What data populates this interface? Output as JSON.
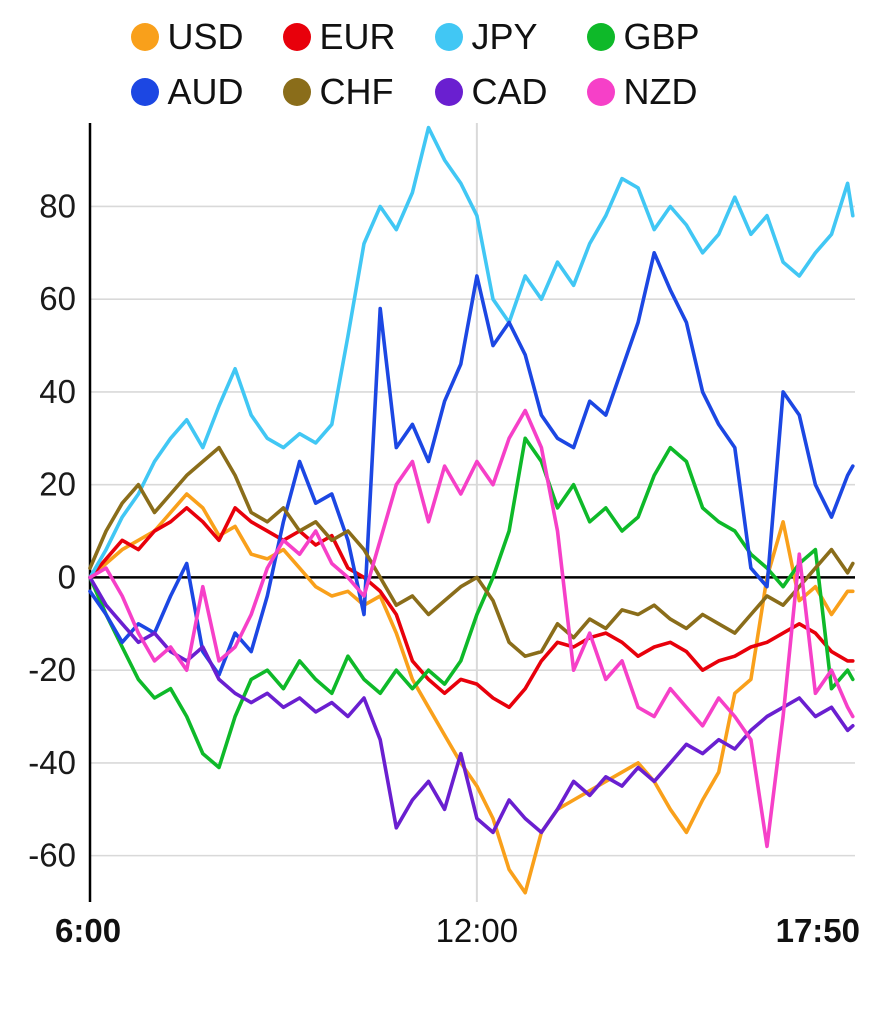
{
  "page": {
    "background": "#ffffff"
  },
  "chart_data": {
    "type": "line",
    "title": "",
    "xlabel": "",
    "ylabel": "",
    "legend_position": "top",
    "grid": {
      "horizontal": true,
      "vertical_at": [
        12
      ],
      "color": "#d9d9d9"
    },
    "axis_color": "#000000",
    "zero_line_color": "#000000",
    "tick_label_color": "#1a1a1a",
    "xlim": [
      6,
      17.8333
    ],
    "ylim": [
      -70,
      98
    ],
    "yticks": [
      80,
      60,
      40,
      20,
      0,
      -20,
      -40,
      -60
    ],
    "xticks": [
      {
        "t": 6,
        "label": "6:00",
        "bold": true
      },
      {
        "t": 12,
        "label": "12:00",
        "bold": false
      },
      {
        "t": 17.8333,
        "label": "17:50",
        "bold": true
      }
    ],
    "x": [
      6,
      6.25,
      6.5,
      6.75,
      7,
      7.25,
      7.5,
      7.75,
      8,
      8.25,
      8.5,
      8.75,
      9,
      9.25,
      9.5,
      9.75,
      10,
      10.25,
      10.5,
      10.75,
      11,
      11.25,
      11.5,
      11.75,
      12,
      12.25,
      12.5,
      12.75,
      13,
      13.25,
      13.5,
      13.75,
      14,
      14.25,
      14.5,
      14.75,
      15,
      15.25,
      15.5,
      15.75,
      16,
      16.25,
      16.5,
      16.75,
      17,
      17.25,
      17.5,
      17.75,
      17.83
    ],
    "series": [
      {
        "name": "USD",
        "color": "#F9A01B",
        "values": [
          0,
          3,
          6,
          8,
          10,
          14,
          18,
          15,
          9,
          11,
          5,
          4,
          6,
          2,
          -2,
          -4,
          -3,
          -6,
          -4,
          -12,
          -22,
          -28,
          -34,
          -40,
          -45,
          -52,
          -63,
          -68,
          -55,
          -50,
          -48,
          -46,
          -44,
          -42,
          -40,
          -44,
          -50,
          -55,
          -48,
          -42,
          -25,
          -22,
          0,
          12,
          -5,
          -2,
          -8,
          -3,
          -3
        ]
      },
      {
        "name": "EUR",
        "color": "#E8000B",
        "values": [
          0,
          4,
          8,
          6,
          10,
          12,
          15,
          12,
          8,
          15,
          12,
          10,
          8,
          10,
          7,
          9,
          2,
          0,
          -3,
          -8,
          -18,
          -22,
          -25,
          -22,
          -23,
          -26,
          -28,
          -24,
          -18,
          -14,
          -15,
          -13,
          -12,
          -14,
          -17,
          -15,
          -14,
          -16,
          -20,
          -18,
          -17,
          -15,
          -14,
          -12,
          -10,
          -12,
          -16,
          -18,
          -18
        ]
      },
      {
        "name": "JPY",
        "color": "#41C7F4",
        "values": [
          0,
          6,
          13,
          18,
          25,
          30,
          34,
          28,
          37,
          45,
          35,
          30,
          28,
          31,
          29,
          33,
          52,
          72,
          80,
          75,
          83,
          97,
          90,
          85,
          78,
          60,
          55,
          65,
          60,
          68,
          63,
          72,
          78,
          86,
          84,
          75,
          80,
          76,
          70,
          74,
          82,
          74,
          78,
          68,
          65,
          70,
          74,
          85,
          78
        ]
      },
      {
        "name": "GBP",
        "color": "#0EB929",
        "values": [
          0,
          -8,
          -15,
          -22,
          -26,
          -24,
          -30,
          -38,
          -41,
          -30,
          -22,
          -20,
          -24,
          -18,
          -22,
          -25,
          -17,
          -22,
          -25,
          -20,
          -24,
          -20,
          -23,
          -18,
          -8,
          0,
          10,
          30,
          25,
          15,
          20,
          12,
          15,
          10,
          13,
          22,
          28,
          25,
          15,
          12,
          10,
          5,
          2,
          -2,
          3,
          6,
          -24,
          -20,
          -22
        ]
      },
      {
        "name": "AUD",
        "color": "#1C47E3",
        "values": [
          -3,
          -8,
          -14,
          -10,
          -12,
          -4,
          3,
          -16,
          -21,
          -12,
          -16,
          -4,
          12,
          25,
          16,
          18,
          8,
          -8,
          58,
          28,
          33,
          25,
          38,
          46,
          65,
          50,
          55,
          48,
          35,
          30,
          28,
          38,
          35,
          45,
          55,
          70,
          62,
          55,
          40,
          33,
          28,
          2,
          -2,
          40,
          35,
          20,
          13,
          22,
          24
        ]
      },
      {
        "name": "CHF",
        "color": "#8A6D1A",
        "values": [
          2,
          10,
          16,
          20,
          14,
          18,
          22,
          25,
          28,
          22,
          14,
          12,
          15,
          10,
          12,
          8,
          10,
          6,
          0,
          -6,
          -4,
          -8,
          -5,
          -2,
          0,
          -5,
          -14,
          -17,
          -16,
          -10,
          -13,
          -9,
          -11,
          -7,
          -8,
          -6,
          -9,
          -11,
          -8,
          -10,
          -12,
          -8,
          -4,
          -6,
          -2,
          2,
          6,
          1,
          3
        ]
      },
      {
        "name": "CAD",
        "color": "#6A1FD0",
        "values": [
          0,
          -6,
          -10,
          -14,
          -12,
          -16,
          -18,
          -15,
          -22,
          -25,
          -27,
          -25,
          -28,
          -26,
          -29,
          -27,
          -30,
          -26,
          -35,
          -54,
          -48,
          -44,
          -50,
          -38,
          -52,
          -55,
          -48,
          -52,
          -55,
          -50,
          -44,
          -47,
          -43,
          -45,
          -41,
          -44,
          -40,
          -36,
          -38,
          -35,
          -37,
          -33,
          -30,
          -28,
          -26,
          -30,
          -28,
          -33,
          -32
        ]
      },
      {
        "name": "NZD",
        "color": "#F640C8",
        "values": [
          0,
          2,
          -4,
          -12,
          -18,
          -15,
          -20,
          -2,
          -18,
          -15,
          -8,
          2,
          8,
          5,
          10,
          3,
          0,
          -4,
          8,
          20,
          25,
          12,
          24,
          18,
          25,
          20,
          30,
          36,
          28,
          10,
          -20,
          -12,
          -22,
          -18,
          -28,
          -30,
          -24,
          -28,
          -32,
          -26,
          -30,
          -35,
          -58,
          -30,
          5,
          -25,
          -20,
          -28,
          -30
        ]
      }
    ]
  }
}
